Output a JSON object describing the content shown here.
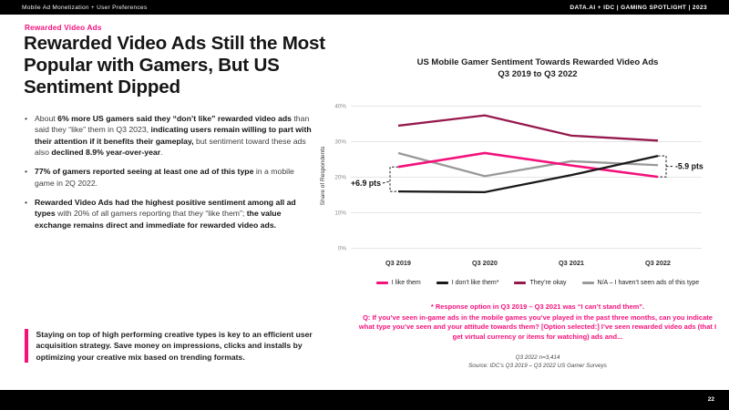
{
  "topbar": {
    "left": "Mobile Ad Monetization + User Preferences",
    "right": "DATA.AI + IDC  |  GAMING SPOTLIGHT  | 2023"
  },
  "header": {
    "eyebrow": "Rewarded Video Ads",
    "title": "Rewarded Video Ads Still the Most Popular with Gamers, But US Sentiment Dipped"
  },
  "bullets": [
    {
      "segments": [
        {
          "t": "About ",
          "b": false
        },
        {
          "t": "6% more US gamers said they “don’t like” rewarded video ads ",
          "b": true
        },
        {
          "t": "than said they “like” them in Q3 2023, ",
          "b": false
        },
        {
          "t": "indicating users remain willing to part with their attention if it benefits their gameplay,",
          "b": true
        },
        {
          "t": " but sentiment toward these ads also ",
          "b": false
        },
        {
          "t": "declined 8.9% year-over-year",
          "b": true
        },
        {
          "t": ".",
          "b": false
        }
      ]
    },
    {
      "segments": [
        {
          "t": "77% of gamers reported seeing at least one ad of this type",
          "b": true
        },
        {
          "t": " in a mobile game in 2Q 2022.",
          "b": false
        }
      ]
    },
    {
      "segments": [
        {
          "t": "Rewarded Video Ads had the highest positive sentiment among all ad types",
          "b": true
        },
        {
          "t": " with 20% of all gamers reporting that they “like them”; ",
          "b": false
        },
        {
          "t": "the value exchange remains direct and immediate for rewarded video ads.",
          "b": true
        }
      ]
    }
  ],
  "callout": {
    "text": "Staying on top of high performing creative types is key to an efficient user acquisition strategy. Save money on impressions, clicks and installs by optimizing your creative mix based on trending formats."
  },
  "chart_data": {
    "type": "line",
    "title": "US Mobile Gamer Sentiment Towards Rewarded Video Ads",
    "subtitle": "Q3 2019 to Q3 2022",
    "xlabel": "",
    "ylabel": "Share of Respondents",
    "categories": [
      "Q3 2019",
      "Q3 2020",
      "Q3 2021",
      "Q3 2022"
    ],
    "yticks": [
      "40%",
      "30%",
      "20%",
      "10%",
      "0%"
    ],
    "ylim": [
      0,
      40
    ],
    "grid": "horizontal",
    "legend_position": "bottom",
    "series": [
      {
        "name": "I like them",
        "color": "#F4117C",
        "values": [
          22.9,
          26.8,
          23.3,
          20.1
        ]
      },
      {
        "name": "I don’t like them*",
        "color": "#1a1a1a",
        "values": [
          16.0,
          15.8,
          20.6,
          26.0
        ]
      },
      {
        "name": "They’re okay",
        "color": "#96194E",
        "values": [
          34.5,
          37.4,
          31.7,
          30.3
        ]
      },
      {
        "name": "N/A – I haven’t seen ads of this type",
        "color": "#999999",
        "values": [
          26.8,
          20.3,
          24.5,
          23.4
        ]
      }
    ],
    "annotations": [
      {
        "label": "+6.9 pts",
        "category": "Q3 2019",
        "between": [
          "I like them",
          "I don’t like them*"
        ],
        "side": "left"
      },
      {
        "label": "-5.9 pts",
        "category": "Q3 2022",
        "between": [
          "I don’t like them*",
          "I like them"
        ],
        "side": "right"
      }
    ]
  },
  "footnote": {
    "lines": [
      "* Response option in Q3 2019 – Q3 2021 was “I can’t stand them”.",
      "Q: If you’ve seen in-game ads in the mobile games you’ve played in the past three months, can you indicate what type you’ve seen and your attitude towards them? [Option selected:] I’ve seen rewarded video ads (that I get virtual currency or items for watching) ads and..."
    ],
    "source_lines": [
      "Q3 2022 n=3,414",
      "Source: IDC’s Q3 2019 – Q3 2022 US Gamer Surveys"
    ]
  },
  "footer": {
    "page_number": "22"
  },
  "colors": {
    "accent_pink": "#F4117C",
    "line_black": "#1a1a1a",
    "line_maroon": "#96194E",
    "line_grey": "#999999",
    "bar_black": "#000000"
  }
}
